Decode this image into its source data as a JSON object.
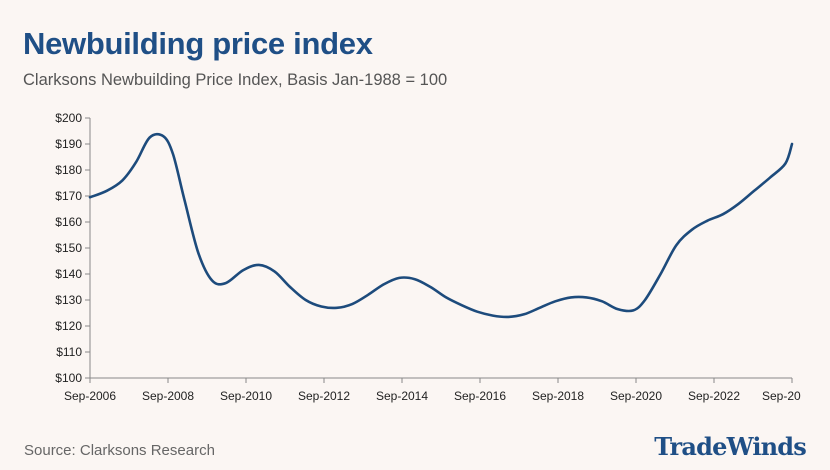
{
  "header": {
    "title": "Newbuilding price index",
    "subtitle": "Clarksons Newbuilding Price Index, Basis Jan-1988 = 100"
  },
  "footer": {
    "source": "Source: Clarksons Research",
    "brand": "TradeWinds"
  },
  "chart_data": {
    "type": "line",
    "title": "Newbuilding price index",
    "subtitle": "Clarksons Newbuilding Price Index, Basis Jan-1988 = 100",
    "xlabel": "",
    "ylabel": "",
    "x_range": [
      2006.67,
      2024.67
    ],
    "ylim": [
      100,
      200
    ],
    "y_ticks": [
      100,
      110,
      120,
      130,
      140,
      150,
      160,
      170,
      180,
      190,
      200
    ],
    "y_tick_labels": [
      "$100",
      "$110",
      "$120",
      "$130",
      "$140",
      "$150",
      "$160",
      "$170",
      "$180",
      "$190",
      "$200"
    ],
    "x_ticks": [
      2006.67,
      2008.67,
      2010.67,
      2012.67,
      2014.67,
      2016.67,
      2018.67,
      2020.67,
      2022.67,
      2024.67
    ],
    "x_tick_labels": [
      "Sep-2006",
      "Sep-2008",
      "Sep-2010",
      "Sep-2012",
      "Sep-2014",
      "Sep-2016",
      "Sep-2018",
      "Sep-2020",
      "Sep-2022",
      "Sep-20"
    ],
    "grid": false,
    "series": [
      {
        "name": "Clarksons Newbuilding Price Index",
        "color": "#1d4b7c",
        "x": [
          2006.67,
          2007.1,
          2007.5,
          2007.85,
          2008.2,
          2008.55,
          2008.8,
          2009.1,
          2009.45,
          2009.8,
          2010.15,
          2010.6,
          2011.0,
          2011.4,
          2011.8,
          2012.2,
          2012.6,
          2013.0,
          2013.4,
          2013.8,
          2014.2,
          2014.6,
          2015.0,
          2015.4,
          2015.8,
          2016.2,
          2016.6,
          2017.0,
          2017.4,
          2017.8,
          2018.2,
          2018.6,
          2019.0,
          2019.4,
          2019.8,
          2020.2,
          2020.6,
          2020.9,
          2021.3,
          2021.7,
          2022.1,
          2022.5,
          2022.9,
          2023.3,
          2023.7,
          2024.1,
          2024.5,
          2024.67
        ],
        "y": [
          169.5,
          172,
          176,
          183,
          192.5,
          193,
          186,
          168,
          148,
          137.5,
          136.5,
          141.5,
          143.5,
          141,
          135,
          130,
          127.5,
          127,
          128.5,
          132,
          136,
          138.5,
          138,
          135,
          131,
          128,
          125.5,
          124,
          123.5,
          124.5,
          127,
          129.5,
          131,
          131,
          129.5,
          126.5,
          126,
          130,
          140,
          151,
          157,
          160.5,
          163,
          167,
          172,
          177,
          182.5,
          190
        ]
      }
    ]
  }
}
